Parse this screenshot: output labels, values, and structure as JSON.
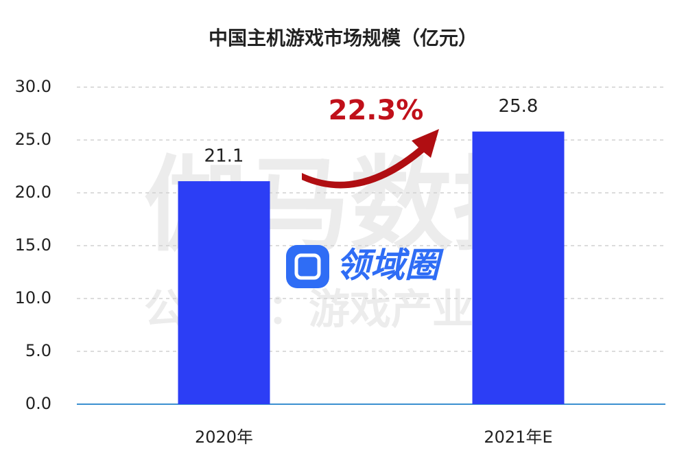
{
  "chart_data": {
    "type": "bar",
    "title": "中国主机游戏市场规模（亿元）",
    "categories": [
      "2020年",
      "2021年E"
    ],
    "values": [
      21.1,
      25.8
    ],
    "color": "#2c3ef5",
    "ylim": [
      0,
      30
    ],
    "yticks": [
      {
        "value": 0,
        "label": "0.0"
      },
      {
        "value": 5,
        "label": "5.0"
      },
      {
        "value": 10,
        "label": "10.0"
      },
      {
        "value": 15,
        "label": "15.0"
      },
      {
        "value": 20,
        "label": "20.0"
      },
      {
        "value": 25,
        "label": "25.0"
      },
      {
        "value": 30,
        "label": "30.0"
      }
    ],
    "grid": true,
    "annotations": [
      "22.3%"
    ],
    "watermarks": [
      "伽马数据",
      "公众号：游戏产业报告",
      "领域圈"
    ]
  }
}
